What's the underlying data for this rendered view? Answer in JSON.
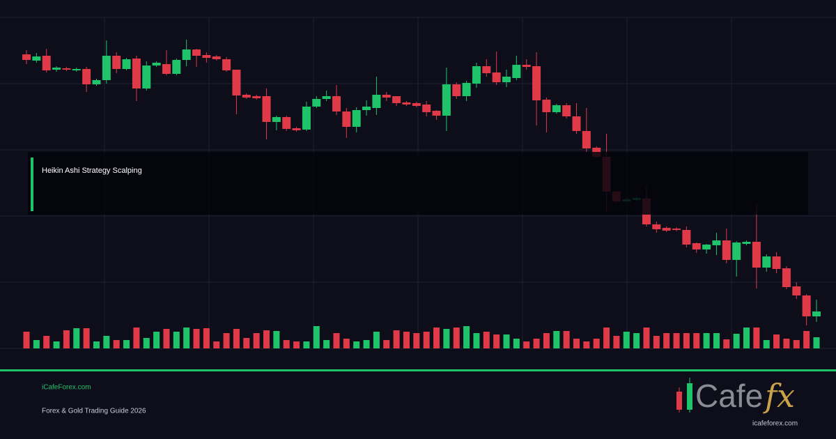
{
  "chart_data": {
    "type": "candlestick",
    "up_color": "#1fc46a",
    "down_color": "#e03a48",
    "ylim": [
      0,
      475
    ],
    "open": [
      422,
      413,
      420,
      400,
      402,
      399,
      401,
      379,
      385,
      420,
      401,
      416,
      373,
      406,
      408,
      394,
      414,
      429,
      421,
      419,
      415,
      400,
      364,
      362,
      362,
      325,
      332,
      316,
      314,
      347,
      358,
      362,
      340,
      318,
      342,
      345,
      364,
      362,
      353,
      352,
      350,
      341,
      334,
      379,
      362,
      380,
      405,
      396,
      382,
      388,
      407,
      405,
      357,
      339,
      349,
      333,
      312,
      288,
      275,
      225,
      211,
      213,
      215,
      178,
      173,
      172,
      170,
      151,
      142,
      148,
      155,
      127,
      150,
      153,
      116,
      132,
      115,
      89,
      76,
      46
    ],
    "close": [
      414,
      419,
      399,
      403,
      400,
      401,
      379,
      385,
      420,
      401,
      415,
      373,
      406,
      410,
      394,
      414,
      429,
      420,
      417,
      415,
      399,
      363,
      360,
      359,
      325,
      332,
      315,
      313,
      347,
      358,
      362,
      340,
      318,
      342,
      347,
      364,
      360,
      352,
      350,
      348,
      339,
      334,
      379,
      362,
      381,
      405,
      395,
      382,
      390,
      407,
      404,
      356,
      339,
      349,
      333,
      312,
      287,
      275,
      225,
      211,
      214,
      216,
      178,
      171,
      169,
      170,
      149,
      142,
      149,
      155,
      127,
      152,
      153,
      116,
      132,
      114,
      88,
      76,
      46,
      53
    ],
    "high": [
      428,
      424,
      430,
      405,
      404,
      403,
      404,
      387,
      442,
      425,
      417,
      420,
      412,
      412,
      428,
      416,
      443,
      430,
      425,
      421,
      418,
      400,
      366,
      364,
      373,
      334,
      334,
      318,
      354,
      362,
      370,
      378,
      345,
      346,
      356,
      390,
      368,
      362,
      355,
      354,
      355,
      342,
      403,
      382,
      384,
      410,
      415,
      426,
      400,
      420,
      415,
      425,
      360,
      351,
      352,
      352,
      345,
      290,
      308,
      226,
      216,
      218,
      232,
      182,
      175,
      174,
      175,
      152,
      150,
      166,
      172,
      154,
      155,
      207,
      135,
      138,
      118,
      95,
      78,
      70
    ],
    "low": [
      408,
      410,
      396,
      397,
      398,
      397,
      368,
      377,
      380,
      395,
      399,
      355,
      370,
      404,
      392,
      392,
      405,
      404,
      410,
      413,
      397,
      336,
      358,
      357,
      300,
      313,
      312,
      311,
      312,
      345,
      355,
      335,
      302,
      310,
      334,
      335,
      355,
      348,
      348,
      346,
      333,
      328,
      312,
      358,
      355,
      374,
      390,
      378,
      375,
      385,
      400,
      320,
      310,
      337,
      330,
      308,
      282,
      273,
      196,
      208,
      209,
      211,
      175,
      166,
      167,
      168,
      145,
      137,
      136,
      134,
      122,
      103,
      148,
      86,
      110,
      108,
      85,
      71,
      33,
      38
    ],
    "volume": [
      24,
      12,
      18,
      10,
      26,
      29,
      29,
      10,
      18,
      12,
      12,
      30,
      15,
      24,
      28,
      24,
      30,
      28,
      29,
      10,
      22,
      28,
      15,
      22,
      26,
      25,
      12,
      10,
      10,
      32,
      12,
      22,
      14,
      10,
      12,
      24,
      12,
      26,
      24,
      22,
      24,
      30,
      28,
      30,
      32,
      22,
      24,
      20,
      20,
      14,
      10,
      14,
      22,
      25,
      25,
      14,
      10,
      14,
      30,
      18,
      24,
      22,
      30,
      18,
      22,
      22,
      22,
      22,
      22,
      22,
      13,
      21,
      30,
      30,
      12,
      20,
      14,
      12,
      25,
      16
    ]
  },
  "banner": {
    "title": "Heikin Ashi Strategy Scalping",
    "site": "iCafeForex.com",
    "tagline": "Forex & Gold Trading Guide 2026"
  },
  "logo": {
    "text": "Cafe",
    "accent": "fx",
    "url": "icafeforex.com"
  }
}
